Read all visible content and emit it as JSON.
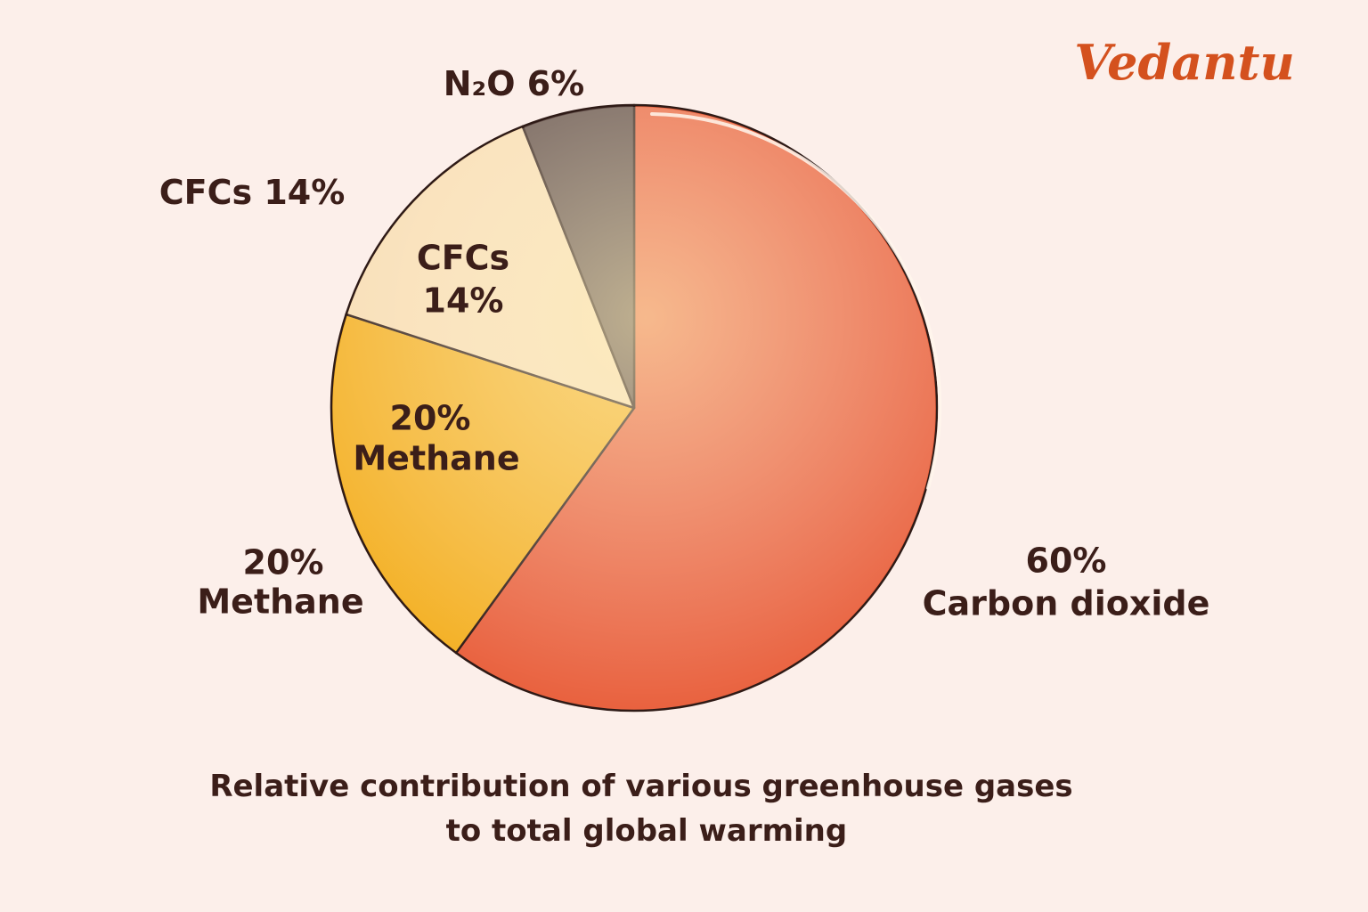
{
  "brand": "Vedantu",
  "chart_data": {
    "type": "pie",
    "title": "Relative contribution of various greenhouse gases to total global warming",
    "categories": [
      "Carbon dioxide",
      "Methane",
      "CFCs",
      "N₂O"
    ],
    "values": [
      60,
      20,
      14,
      6
    ],
    "value_labels": [
      "60%",
      "20%",
      "14%",
      "6%"
    ],
    "colors": [
      "#e9623f",
      "#f4b126",
      "#f8dcb2",
      "#5f4b46"
    ]
  }
}
